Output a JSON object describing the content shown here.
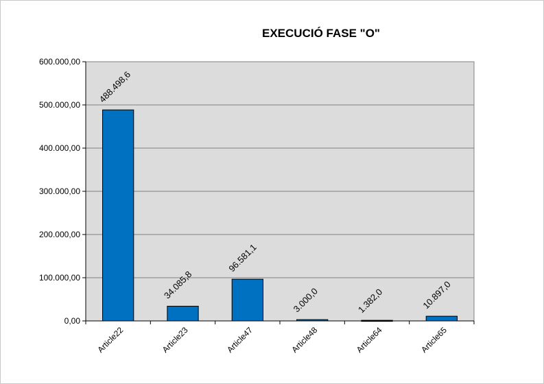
{
  "chart_data": {
    "type": "bar",
    "title": "EXECUCIÓ FASE \"O\"",
    "xlabel": "",
    "ylabel": "",
    "categories": [
      "Article22",
      "Article23",
      "Article47",
      "Article48",
      "Article64",
      "Article65"
    ],
    "values": [
      488498.6,
      34085.8,
      96581.1,
      3000.0,
      1382.0,
      10897.0
    ],
    "data_labels": [
      "488.498,6",
      "34.085,8",
      "96.581,1",
      "3.000,0",
      "1.382,0",
      "10.897,0"
    ],
    "ylim": [
      0,
      600000
    ],
    "y_ticks": [
      0,
      100000,
      200000,
      300000,
      400000,
      500000,
      600000
    ],
    "y_tick_labels": [
      "0,00",
      "100.000,00",
      "200.000,00",
      "300.000,00",
      "400.000,00",
      "500.000,00",
      "600.000,00"
    ],
    "grid": true,
    "legend": "none",
    "colors": {
      "bar": "#0070C0",
      "bar_border": "#000000",
      "plot_background": "#DCDCDC",
      "gridline": "#808080",
      "axis": "#000000"
    }
  }
}
